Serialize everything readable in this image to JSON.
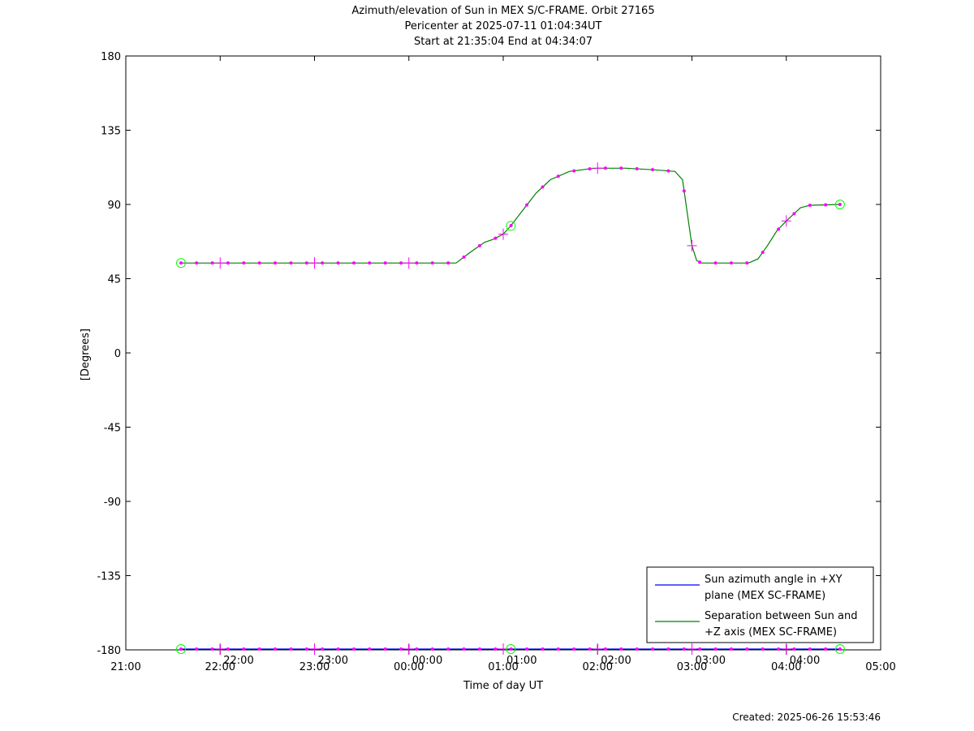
{
  "chart_data": {
    "type": "line",
    "title_lines": [
      "Azimuth/elevation of Sun in MEX S/C-FRAME.  Orbit 27165",
      "Pericenter at 2025-07-11 01:04:34UT",
      "Start at 21:35:04 End at 04:34:07"
    ],
    "xlabel": "Time of day UT",
    "ylabel": "[Degrees]",
    "xlim": [
      21.0,
      29.0
    ],
    "ylim": [
      -180,
      180
    ],
    "y_ticks": [
      180,
      135,
      90,
      45,
      0,
      -45,
      -90,
      -135,
      -180
    ],
    "x_ticks": [
      {
        "x": 21,
        "label": "21:00"
      },
      {
        "x": 22,
        "label": "22:00"
      },
      {
        "x": 23,
        "label": "23:00"
      },
      {
        "x": 24,
        "label": "00:00"
      },
      {
        "x": 25,
        "label": "01:00"
      },
      {
        "x": 26,
        "label": "02:00"
      },
      {
        "x": 27,
        "label": "03:00"
      },
      {
        "x": 28,
        "label": "04:00"
      },
      {
        "x": 29,
        "label": "05:00"
      }
    ],
    "hour_marks": [
      {
        "x": 22,
        "label": "22:00"
      },
      {
        "x": 23,
        "label": "23:00"
      },
      {
        "x": 24,
        "label": "00:00"
      },
      {
        "x": 25,
        "label": "01:00"
      },
      {
        "x": 26,
        "label": "02:00"
      },
      {
        "x": 27,
        "label": "03:00"
      },
      {
        "x": 28,
        "label": "04:00"
      }
    ],
    "legend_position": "bottom-right",
    "grid": false,
    "series": [
      {
        "name_lines": [
          "Sun azimuth angle in +XY",
          "plane (MEX SC-FRAME)"
        ],
        "color": "#0000ff",
        "x": [
          21.585,
          28.569
        ],
        "y": [
          -179.5,
          -179.5
        ]
      },
      {
        "name_lines": [
          "Separation between Sun and",
          "+Z axis (MEX SC-FRAME)"
        ],
        "color": "#008000",
        "x": [
          21.585,
          22.0,
          23.0,
          24.0,
          24.5,
          24.65,
          24.8,
          24.9,
          25.0,
          25.08,
          25.2,
          25.35,
          25.5,
          25.7,
          25.9,
          26.0,
          26.3,
          26.6,
          26.82,
          26.9,
          26.95,
          27.0,
          27.05,
          27.1,
          27.3,
          27.6,
          27.7,
          27.8,
          27.9,
          28.0,
          28.15,
          28.25,
          28.569
        ],
        "y": [
          54.5,
          54.5,
          54.5,
          54.5,
          54.5,
          61,
          67,
          69,
          72,
          77,
          86,
          97,
          105,
          110,
          111.5,
          112,
          112,
          111,
          110,
          105,
          85,
          65,
          56,
          54.5,
          54.5,
          54.5,
          57,
          65,
          74,
          80,
          88,
          89.5,
          90
        ]
      }
    ],
    "marker_points": {
      "color": "#ff00ff",
      "x": [
        21.585,
        21.75,
        21.917,
        22.083,
        22.25,
        22.417,
        22.583,
        22.75,
        22.917,
        23.083,
        23.25,
        23.417,
        23.583,
        23.75,
        23.917,
        24.083,
        24.25,
        24.417,
        24.583,
        24.75,
        24.917,
        25.083,
        25.25,
        25.417,
        25.583,
        25.75,
        25.917,
        26.083,
        26.25,
        26.417,
        26.583,
        26.75,
        26.917,
        27.083,
        27.25,
        27.417,
        27.583,
        27.75,
        27.917,
        28.083,
        28.25,
        28.417,
        28.569
      ],
      "big_cross_x": [
        22.0,
        23.0,
        24.0,
        25.0,
        26.0,
        27.0,
        28.0
      ],
      "circles": [
        {
          "x": 21.585,
          "y": 54.5
        },
        {
          "x": 25.08,
          "y": 77
        },
        {
          "x": 28.569,
          "y": 90
        },
        {
          "x": 21.585,
          "y": -179.5
        },
        {
          "x": 25.08,
          "y": -179.5
        },
        {
          "x": 28.569,
          "y": -179.5
        }
      ]
    }
  },
  "footer": {
    "created": "Created: 2025-06-26 15:53:46"
  }
}
